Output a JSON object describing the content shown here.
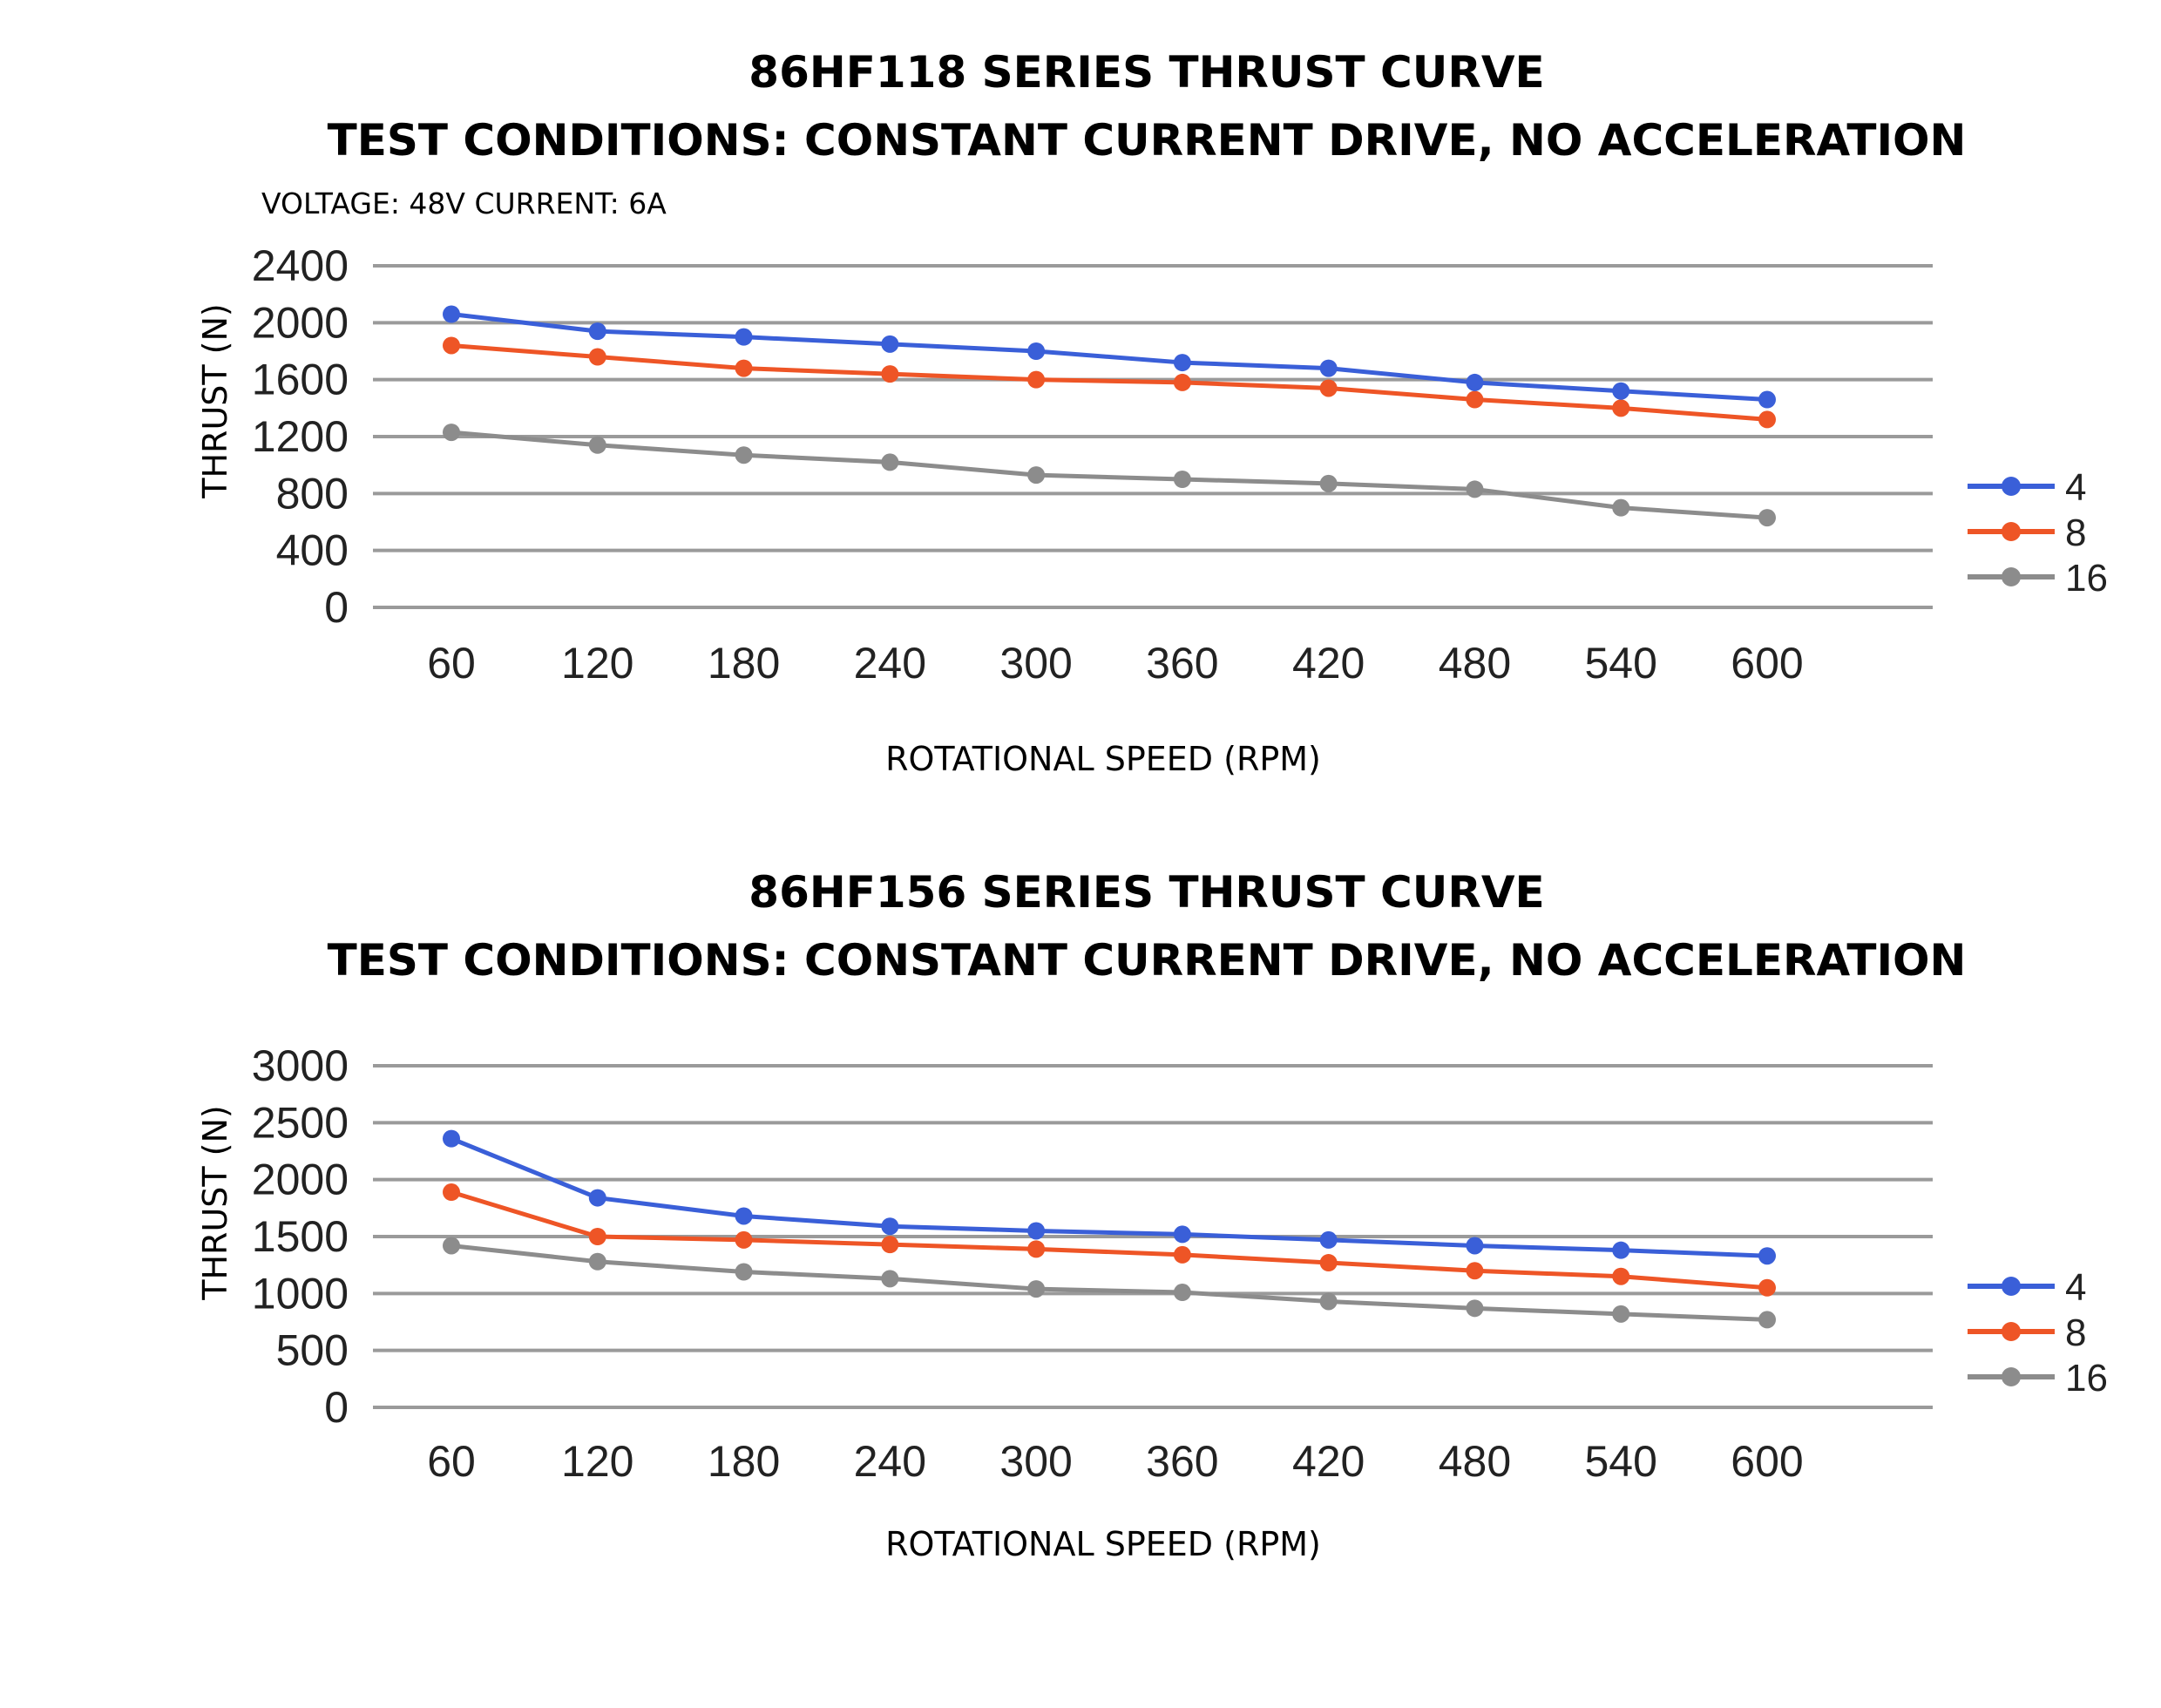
{
  "chart_data": [
    {
      "type": "line",
      "title": "86HF118 SERIES THRUST CURVE",
      "subtitle": "TEST CONDITIONS: CONSTANT CURRENT DRIVE, NO ACCELERATION",
      "conditions": "VOLTAGE: 48V CURRENT: 6A",
      "xlabel": "ROTATIONAL SPEED (RPM)",
      "ylabel": "THRUST (N)",
      "categories": [
        "60",
        "120",
        "180",
        "240",
        "300",
        "360",
        "420",
        "480",
        "540",
        "600"
      ],
      "yticks": [
        0,
        400,
        800,
        1200,
        1600,
        2000,
        2400
      ],
      "ylim": [
        0,
        2400
      ],
      "grid": true,
      "legend_position": "right",
      "series": [
        {
          "name": "4",
          "color": "#3a5fd8",
          "values": [
            2060,
            1940,
            1900,
            1850,
            1800,
            1720,
            1680,
            1580,
            1520,
            1460
          ]
        },
        {
          "name": "8",
          "color": "#ee5526",
          "values": [
            1840,
            1760,
            1680,
            1640,
            1600,
            1580,
            1540,
            1460,
            1400,
            1320
          ]
        },
        {
          "name": "16",
          "color": "#8c8c8c",
          "values": [
            1230,
            1140,
            1070,
            1020,
            930,
            900,
            870,
            830,
            700,
            630
          ]
        }
      ]
    },
    {
      "type": "line",
      "title": "86HF156 SERIES THRUST CURVE",
      "subtitle": "TEST CONDITIONS: CONSTANT CURRENT DRIVE, NO ACCELERATION",
      "xlabel": "ROTATIONAL SPEED (RPM)",
      "ylabel": "THRUST (N)",
      "categories": [
        "60",
        "120",
        "180",
        "240",
        "300",
        "360",
        "420",
        "480",
        "540",
        "600"
      ],
      "yticks": [
        0,
        500,
        1000,
        1500,
        2000,
        2500,
        3000
      ],
      "ylim": [
        0,
        3000
      ],
      "grid": true,
      "legend_position": "right",
      "series": [
        {
          "name": "4",
          "color": "#3a5fd8",
          "values": [
            2360,
            1840,
            1680,
            1590,
            1550,
            1520,
            1470,
            1420,
            1380,
            1330
          ]
        },
        {
          "name": "8",
          "color": "#ee5526",
          "values": [
            1890,
            1500,
            1470,
            1430,
            1390,
            1340,
            1270,
            1200,
            1150,
            1050
          ]
        },
        {
          "name": "16",
          "color": "#8c8c8c",
          "values": [
            1420,
            1280,
            1190,
            1130,
            1040,
            1010,
            930,
            870,
            820,
            770
          ]
        }
      ]
    }
  ]
}
